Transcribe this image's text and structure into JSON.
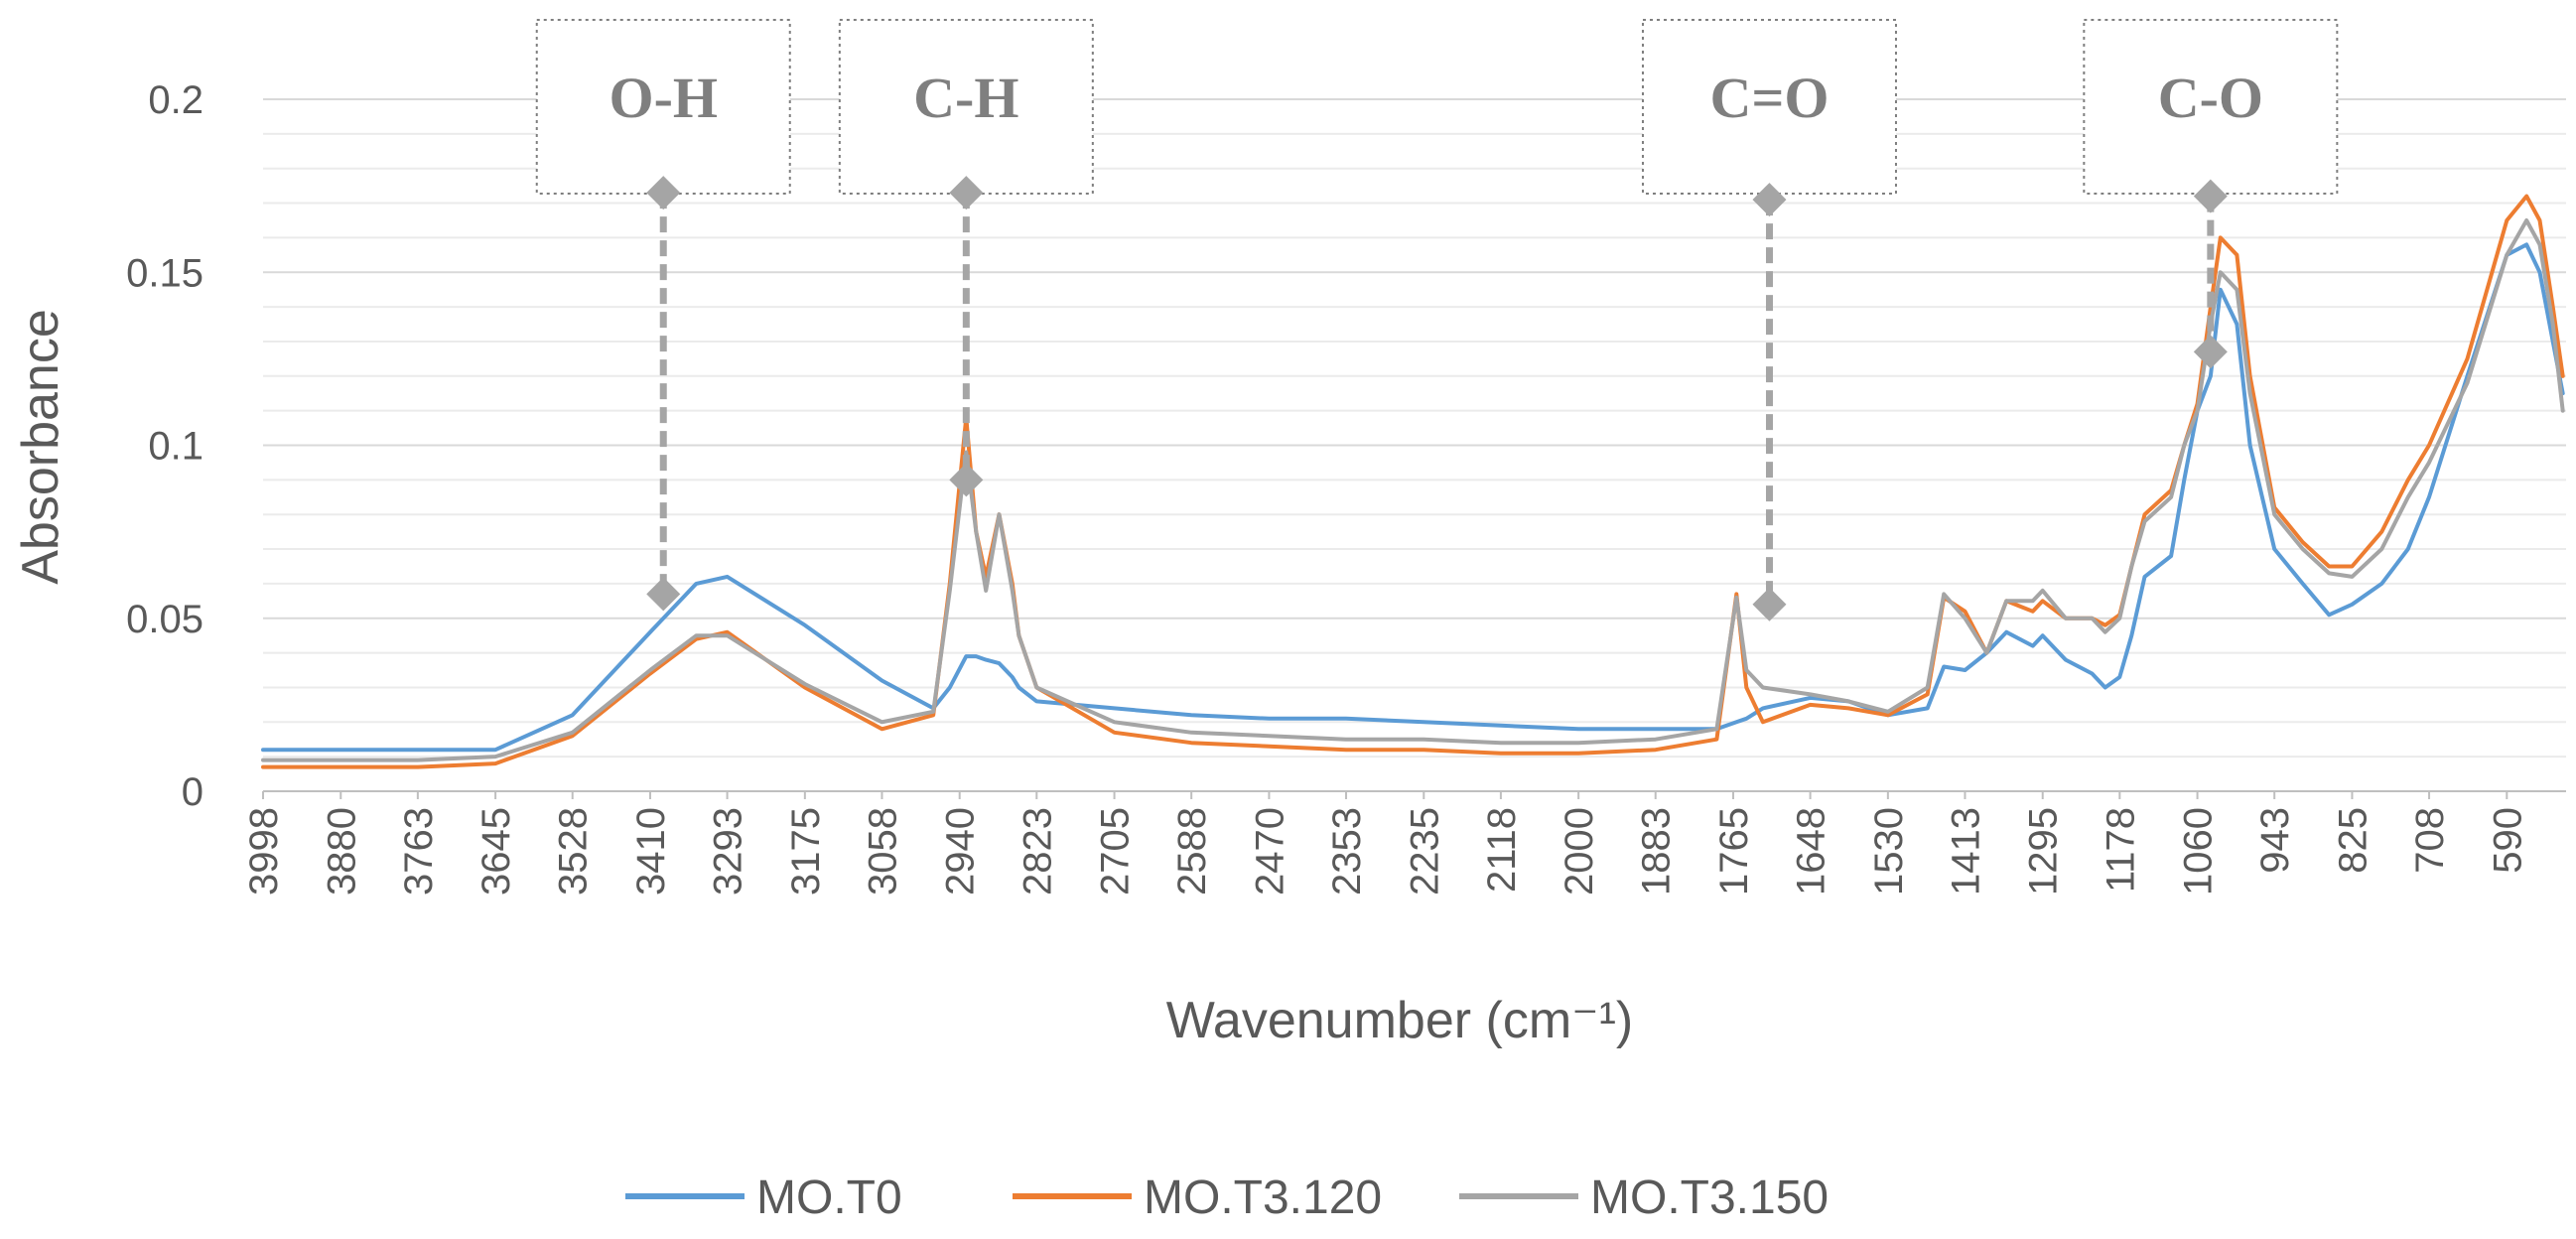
{
  "chart_data": {
    "type": "line",
    "title": "",
    "xlabel": "Wavenumber (cm⁻¹)",
    "ylabel": "Absorbance",
    "xlim": [
      3998,
      500
    ],
    "x_reversed": true,
    "ylim": [
      0,
      0.2
    ],
    "y_ticks": [
      0,
      0.05,
      0.1,
      0.15,
      0.2
    ],
    "y_tick_labels": [
      "0",
      "0.05",
      "0.1",
      "0.15",
      "0.2"
    ],
    "x_ticks": [
      3998,
      3880,
      3763,
      3645,
      3528,
      3410,
      3293,
      3175,
      3058,
      2940,
      2823,
      2705,
      2588,
      2470,
      2353,
      2235,
      2118,
      2000,
      1883,
      1765,
      1648,
      1530,
      1413,
      1295,
      1178,
      1060,
      943,
      825,
      708,
      590
    ],
    "x_tick_labels": [
      "3998",
      "3880",
      "3763",
      "3645",
      "3528",
      "3410",
      "3293",
      "3175",
      "3058",
      "2940",
      "2823",
      "2705",
      "2588",
      "2470",
      "2353",
      "2235",
      "2118",
      "2000",
      "1883",
      "1765",
      "1648",
      "1530",
      "1413",
      "1295",
      "1178",
      "1060",
      "943",
      "825",
      "708",
      "590"
    ],
    "grid": "horizontal",
    "legend": "bottom-center",
    "x": [
      3998,
      3880,
      3763,
      3645,
      3528,
      3410,
      3340,
      3293,
      3175,
      3058,
      2980,
      2955,
      2930,
      2915,
      2900,
      2880,
      2860,
      2850,
      2823,
      2705,
      2588,
      2470,
      2353,
      2235,
      2118,
      2000,
      1883,
      1790,
      1760,
      1745,
      1720,
      1648,
      1590,
      1530,
      1470,
      1445,
      1413,
      1380,
      1350,
      1310,
      1295,
      1260,
      1220,
      1200,
      1178,
      1160,
      1140,
      1100,
      1080,
      1060,
      1040,
      1025,
      1000,
      980,
      943,
      900,
      860,
      825,
      780,
      740,
      708,
      650,
      590,
      560,
      540,
      520,
      505
    ],
    "series": [
      {
        "name": "MO.T0",
        "color": "#5b9bd5",
        "values": [
          0.012,
          0.012,
          0.012,
          0.012,
          0.022,
          0.046,
          0.06,
          0.062,
          0.048,
          0.032,
          0.024,
          0.03,
          0.039,
          0.039,
          0.038,
          0.037,
          0.033,
          0.03,
          0.026,
          0.024,
          0.022,
          0.021,
          0.021,
          0.02,
          0.019,
          0.018,
          0.018,
          0.018,
          0.02,
          0.021,
          0.024,
          0.027,
          0.026,
          0.022,
          0.024,
          0.036,
          0.035,
          0.04,
          0.046,
          0.042,
          0.045,
          0.038,
          0.034,
          0.03,
          0.033,
          0.045,
          0.062,
          0.068,
          0.09,
          0.11,
          0.12,
          0.145,
          0.135,
          0.1,
          0.07,
          0.06,
          0.051,
          0.054,
          0.06,
          0.07,
          0.085,
          0.12,
          0.155,
          0.158,
          0.15,
          0.13,
          0.115
        ]
      },
      {
        "name": "MO.T3.120",
        "color": "#ed7d31",
        "values": [
          0.007,
          0.007,
          0.007,
          0.008,
          0.016,
          0.034,
          0.044,
          0.046,
          0.03,
          0.018,
          0.022,
          0.06,
          0.108,
          0.075,
          0.062,
          0.08,
          0.06,
          0.045,
          0.03,
          0.017,
          0.014,
          0.013,
          0.012,
          0.012,
          0.011,
          0.011,
          0.012,
          0.015,
          0.057,
          0.03,
          0.02,
          0.025,
          0.024,
          0.022,
          0.028,
          0.056,
          0.052,
          0.04,
          0.055,
          0.052,
          0.055,
          0.05,
          0.05,
          0.048,
          0.051,
          0.065,
          0.08,
          0.087,
          0.1,
          0.112,
          0.14,
          0.16,
          0.155,
          0.12,
          0.082,
          0.072,
          0.065,
          0.065,
          0.075,
          0.09,
          0.1,
          0.125,
          0.165,
          0.172,
          0.165,
          0.14,
          0.12
        ]
      },
      {
        "name": "MO.T3.150",
        "color": "#a5a5a5",
        "values": [
          0.009,
          0.009,
          0.009,
          0.01,
          0.017,
          0.035,
          0.045,
          0.045,
          0.031,
          0.02,
          0.023,
          0.058,
          0.098,
          0.075,
          0.058,
          0.08,
          0.058,
          0.045,
          0.03,
          0.02,
          0.017,
          0.016,
          0.015,
          0.015,
          0.014,
          0.014,
          0.015,
          0.018,
          0.056,
          0.035,
          0.03,
          0.028,
          0.026,
          0.023,
          0.03,
          0.057,
          0.05,
          0.04,
          0.055,
          0.055,
          0.058,
          0.05,
          0.05,
          0.046,
          0.05,
          0.065,
          0.078,
          0.085,
          0.1,
          0.11,
          0.135,
          0.15,
          0.145,
          0.115,
          0.08,
          0.07,
          0.063,
          0.062,
          0.07,
          0.085,
          0.095,
          0.118,
          0.155,
          0.165,
          0.158,
          0.135,
          0.11
        ]
      }
    ],
    "annotations": [
      {
        "label": "O-H",
        "x": 3390,
        "y_top": 0.173,
        "y_bottom": 0.057
      },
      {
        "label": "C-H",
        "x": 2930,
        "y_top": 0.173,
        "y_bottom": 0.09
      },
      {
        "label": "C=O",
        "x": 1710,
        "y_top": 0.171,
        "y_bottom": 0.054
      },
      {
        "label": "C-O",
        "x": 1040,
        "y_top": 0.172,
        "y_bottom": 0.127
      }
    ]
  }
}
